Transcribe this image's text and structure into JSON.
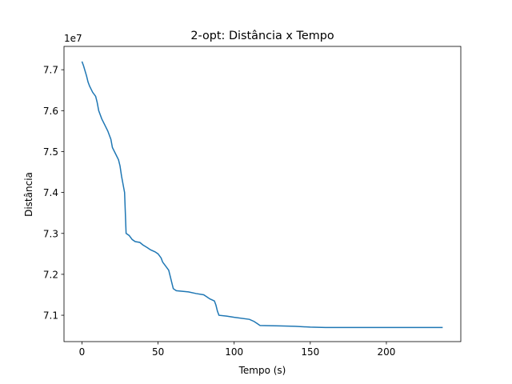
{
  "chart_data": {
    "type": "line",
    "title": "2-opt: Distância x Tempo",
    "xlabel": "Tempo (s)",
    "ylabel": "Distância",
    "y_scale_label": "1e7",
    "x": [
      0,
      1,
      3,
      4,
      5,
      7,
      9,
      10,
      11,
      13,
      15,
      17,
      19,
      20,
      22,
      24,
      25,
      26,
      27,
      28,
      28.5,
      29,
      31,
      33,
      35,
      38,
      40,
      43,
      45,
      48,
      50,
      52,
      53,
      56,
      57,
      58,
      59,
      60,
      62,
      70,
      75,
      80,
      82,
      84,
      87,
      88,
      89,
      90,
      95,
      100,
      110,
      113,
      115,
      117,
      130,
      140,
      150,
      160,
      237
    ],
    "series": [
      {
        "name": "Distância",
        "color": "#1f77b4",
        "values": [
          7.72,
          7.71,
          7.685,
          7.67,
          7.66,
          7.645,
          7.635,
          7.62,
          7.6,
          7.58,
          7.565,
          7.55,
          7.53,
          7.51,
          7.495,
          7.48,
          7.465,
          7.44,
          7.42,
          7.4,
          7.35,
          7.3,
          7.295,
          7.285,
          7.28,
          7.278,
          7.272,
          7.265,
          7.26,
          7.255,
          7.25,
          7.24,
          7.23,
          7.215,
          7.21,
          7.195,
          7.18,
          7.165,
          7.16,
          7.157,
          7.153,
          7.15,
          7.145,
          7.14,
          7.135,
          7.125,
          7.11,
          7.1,
          7.098,
          7.095,
          7.09,
          7.085,
          7.08,
          7.075,
          7.074,
          7.073,
          7.071,
          7.07,
          7.07
        ]
      }
    ],
    "xlim": [
      -11.8,
      248.9
    ],
    "xticks": [
      0,
      50,
      100,
      150,
      200
    ],
    "ylim": [
      7.0356,
      7.757
    ],
    "yticks": [
      7.1,
      7.2,
      7.3,
      7.4,
      7.5,
      7.6,
      7.7
    ]
  }
}
